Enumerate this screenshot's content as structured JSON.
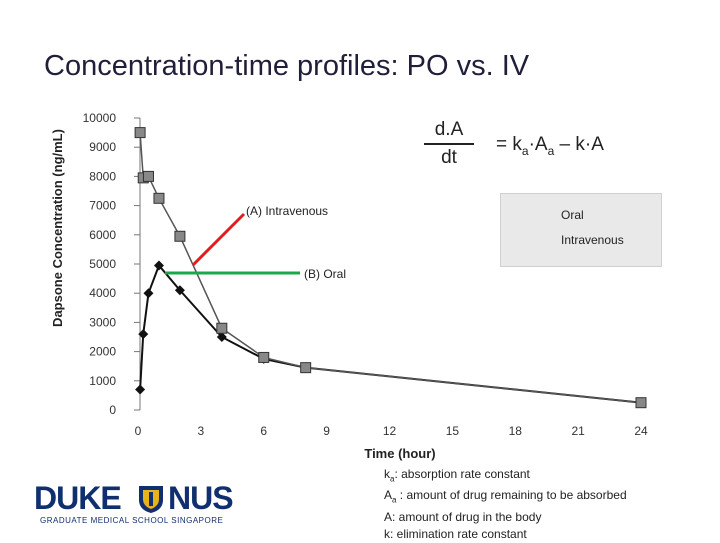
{
  "slide": {
    "title": "Concentration-time profiles: PO vs. IV"
  },
  "formula": {
    "numerator": "d.A",
    "denominator": "dt",
    "rhs_eq": "= k",
    "rhs_sub1": "a",
    "rhs_mid": "·A",
    "rhs_sub2": "a",
    "rhs_end": " – k·A"
  },
  "annotations": {
    "iv_label": "(A) Intravenous",
    "oral_label": "(B) Oral",
    "iv_color": "#e02020",
    "oral_color": "#1aa84a"
  },
  "definitions": [
    {
      "sym": "k",
      "sub": "a",
      "text": ": absorption rate constant"
    },
    {
      "sym": "A",
      "sub": "a",
      "text": " : amount of drug remaining to be absorbed"
    },
    {
      "sym": "A",
      "sub": "",
      "text": ": amount of drug in the body"
    },
    {
      "sym": "k",
      "sub": "",
      "text": ": elimination rate constant"
    }
  ],
  "logo": {
    "left": "DUKE",
    "right": "NUS",
    "tagline": "GRADUATE MEDICAL SCHOOL SINGAPORE",
    "icon": "crest-icon",
    "color": "#0f2f6e"
  },
  "chart_data": {
    "type": "line",
    "xlabel": "Time (hour)",
    "ylabel": "Dapsone Concentration (ng/mL)",
    "xlim": [
      0,
      24
    ],
    "ylim": [
      0,
      10000
    ],
    "xticks": [
      0,
      3,
      6,
      9,
      12,
      15,
      18,
      21,
      24
    ],
    "yticks": [
      0,
      1000,
      2000,
      3000,
      4000,
      5000,
      6000,
      7000,
      8000,
      9000,
      10000
    ],
    "legend_position": "top-right",
    "series": [
      {
        "name": "Oral",
        "marker": "diamond",
        "color": "#111111",
        "x": [
          0.1,
          0.25,
          0.5,
          1,
          2,
          4,
          6,
          8,
          24
        ],
        "y": [
          700,
          2600,
          4000,
          4950,
          4100,
          2500,
          1750,
          1450,
          250
        ]
      },
      {
        "name": "Intravenous",
        "marker": "square",
        "color": "#555555",
        "x": [
          0.1,
          0.25,
          0.5,
          1,
          2,
          4,
          6,
          8,
          24
        ],
        "y": [
          9500,
          7950,
          8000,
          7250,
          5950,
          2800,
          1800,
          1450,
          250
        ]
      }
    ]
  }
}
